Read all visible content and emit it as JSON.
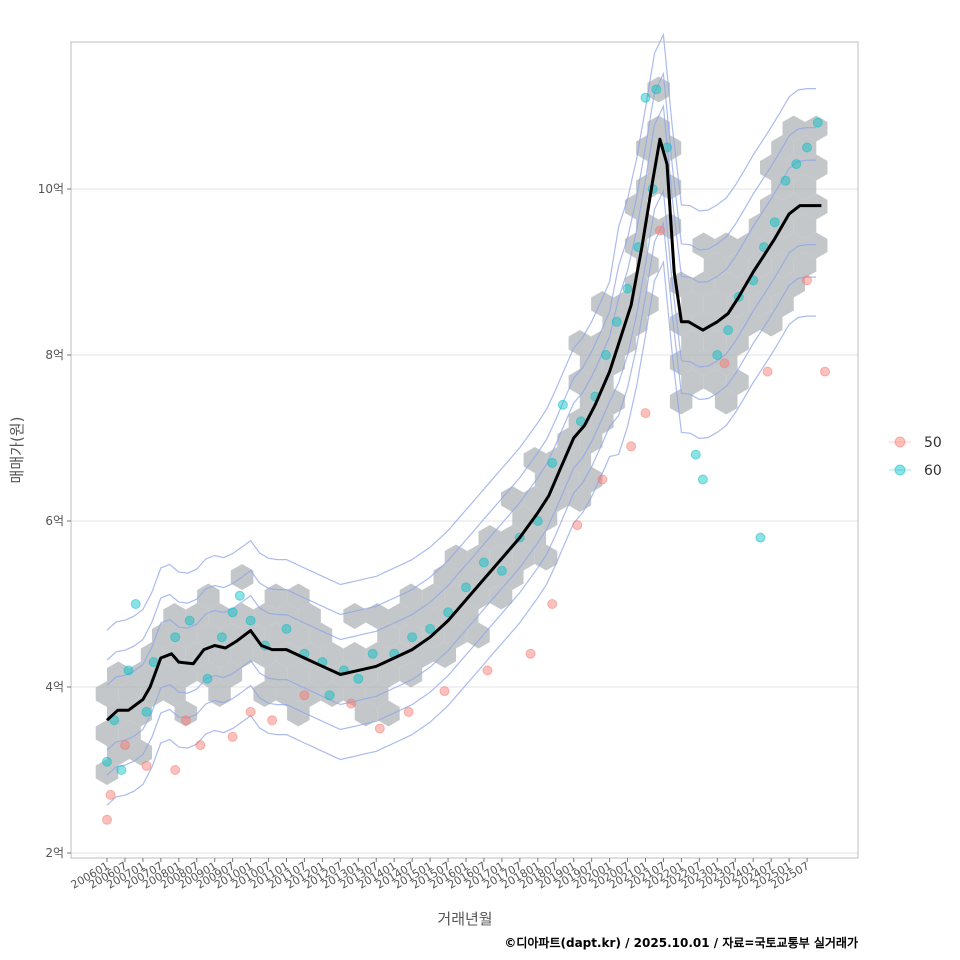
{
  "chart_data": {
    "type": "scatter",
    "xlabel": "거래년월",
    "ylabel": "매매가(원)",
    "caption": "©디아파트(dapt.kr) / 2025.10.01 / 자료=국토교통부 실거래가",
    "ylim": [
      2.0,
      11.7
    ],
    "y_ticks": [
      {
        "value": 2,
        "label": "2억"
      },
      {
        "value": 4,
        "label": "4억"
      },
      {
        "value": 6,
        "label": "6억"
      },
      {
        "value": 8,
        "label": "8억"
      },
      {
        "value": 10,
        "label": "10억"
      }
    ],
    "x_ticks": [
      "200601",
      "200607",
      "200701",
      "200707",
      "200801",
      "200807",
      "200901",
      "200907",
      "201001",
      "201007",
      "201101",
      "201107",
      "201201",
      "201207",
      "201301",
      "201307",
      "201401",
      "201407",
      "201501",
      "201507",
      "201601",
      "201607",
      "201701",
      "201707",
      "201801",
      "201807",
      "201901",
      "201907",
      "202001",
      "202007",
      "202101",
      "202107",
      "202201",
      "202207",
      "202301",
      "202307",
      "202401",
      "202407",
      "202501",
      "202507"
    ],
    "legend": {
      "placement": "right",
      "entries": [
        {
          "label": "50",
          "color": "#f8766d"
        },
        {
          "label": "60",
          "color": "#00bfc4"
        }
      ]
    },
    "colors": {
      "hex": "#a9afb4",
      "trend": "#000000",
      "contour": "#8fa4e6",
      "grid": "#e3e3e3"
    },
    "trend": {
      "x": [
        2006.0,
        2006.3,
        2006.6,
        2007.0,
        2007.2,
        2007.5,
        2007.8,
        2008.0,
        2008.4,
        2008.7,
        2009.0,
        2009.3,
        2009.6,
        2010.0,
        2010.3,
        2010.6,
        2011.0,
        2011.5,
        2012.0,
        2012.5,
        2013.0,
        2013.5,
        2014.0,
        2014.5,
        2015.0,
        2015.5,
        2016.0,
        2016.5,
        2017.0,
        2017.5,
        2018.0,
        2018.3,
        2018.6,
        2019.0,
        2019.3,
        2019.6,
        2020.0,
        2020.3,
        2020.6,
        2020.9,
        2021.2,
        2021.4,
        2021.6,
        2021.8,
        2022.0,
        2022.2,
        2022.4,
        2022.6,
        2023.0,
        2023.3,
        2023.6,
        2024.0,
        2024.3,
        2024.6,
        2025.0,
        2025.3,
        2025.6,
        2025.9
      ],
      "y": [
        3.6,
        3.72,
        3.72,
        3.85,
        4.0,
        4.35,
        4.4,
        4.3,
        4.28,
        4.45,
        4.5,
        4.47,
        4.55,
        4.68,
        4.5,
        4.45,
        4.45,
        4.35,
        4.25,
        4.15,
        4.2,
        4.25,
        4.35,
        4.45,
        4.6,
        4.8,
        5.05,
        5.3,
        5.55,
        5.8,
        6.1,
        6.3,
        6.6,
        7.0,
        7.15,
        7.4,
        7.8,
        8.2,
        8.6,
        9.3,
        10.1,
        10.6,
        10.3,
        9.0,
        8.4,
        8.4,
        8.35,
        8.3,
        8.4,
        8.5,
        8.7,
        9.0,
        9.2,
        9.4,
        9.7,
        9.8,
        9.8,
        9.8
      ]
    },
    "series": [
      {
        "name": "50",
        "points": [
          [
            2006.0,
            2.4
          ],
          [
            2006.1,
            2.7
          ],
          [
            2006.5,
            3.3
          ],
          [
            2007.1,
            3.05
          ],
          [
            2007.9,
            3.0
          ],
          [
            2008.6,
            3.3
          ],
          [
            2009.5,
            3.4
          ],
          [
            2010.0,
            3.7
          ],
          [
            2011.5,
            3.9
          ],
          [
            2012.8,
            3.8
          ],
          [
            2014.4,
            3.7
          ],
          [
            2015.4,
            3.95
          ],
          [
            2016.6,
            4.2
          ],
          [
            2017.8,
            4.4
          ],
          [
            2018.4,
            5.0
          ],
          [
            2019.1,
            5.95
          ],
          [
            2019.8,
            6.5
          ],
          [
            2020.6,
            6.9
          ],
          [
            2021.0,
            7.3
          ],
          [
            2021.4,
            9.5
          ],
          [
            2023.2,
            7.9
          ],
          [
            2024.4,
            7.8
          ],
          [
            2025.5,
            8.9
          ],
          [
            2026.0,
            7.8
          ],
          [
            2013.6,
            3.5
          ],
          [
            2010.6,
            3.6
          ],
          [
            2008.2,
            3.6
          ]
        ]
      },
      {
        "name": "60",
        "points": [
          [
            2006.0,
            3.1
          ],
          [
            2006.2,
            3.6
          ],
          [
            2006.6,
            4.2
          ],
          [
            2006.8,
            5.0
          ],
          [
            2007.3,
            4.3
          ],
          [
            2007.9,
            4.6
          ],
          [
            2008.3,
            4.8
          ],
          [
            2008.8,
            4.1
          ],
          [
            2009.2,
            4.6
          ],
          [
            2009.5,
            4.9
          ],
          [
            2009.7,
            5.1
          ],
          [
            2010.0,
            4.8
          ],
          [
            2010.4,
            4.5
          ],
          [
            2011.0,
            4.7
          ],
          [
            2011.5,
            4.4
          ],
          [
            2012.0,
            4.3
          ],
          [
            2012.6,
            4.2
          ],
          [
            2013.0,
            4.1
          ],
          [
            2013.4,
            4.4
          ],
          [
            2014.0,
            4.4
          ],
          [
            2014.5,
            4.6
          ],
          [
            2015.0,
            4.7
          ],
          [
            2015.5,
            4.9
          ],
          [
            2016.0,
            5.2
          ],
          [
            2016.5,
            5.5
          ],
          [
            2017.0,
            5.4
          ],
          [
            2017.5,
            5.8
          ],
          [
            2018.0,
            6.0
          ],
          [
            2018.4,
            6.7
          ],
          [
            2018.7,
            7.4
          ],
          [
            2019.2,
            7.2
          ],
          [
            2019.6,
            7.5
          ],
          [
            2019.9,
            8.0
          ],
          [
            2020.2,
            8.4
          ],
          [
            2020.5,
            8.8
          ],
          [
            2020.8,
            9.3
          ],
          [
            2021.0,
            11.1
          ],
          [
            2021.3,
            11.2
          ],
          [
            2021.6,
            10.5
          ],
          [
            2021.2,
            10.0
          ],
          [
            2022.4,
            6.8
          ],
          [
            2022.6,
            6.5
          ],
          [
            2023.0,
            8.0
          ],
          [
            2023.3,
            8.3
          ],
          [
            2023.6,
            8.7
          ],
          [
            2024.0,
            8.9
          ],
          [
            2024.3,
            9.3
          ],
          [
            2024.6,
            9.6
          ],
          [
            2024.9,
            10.1
          ],
          [
            2025.2,
            10.3
          ],
          [
            2025.5,
            10.5
          ],
          [
            2025.8,
            10.8
          ],
          [
            2024.2,
            5.8
          ],
          [
            2006.4,
            3.0
          ],
          [
            2007.1,
            3.7
          ],
          [
            2012.2,
            3.9
          ]
        ]
      }
    ]
  }
}
